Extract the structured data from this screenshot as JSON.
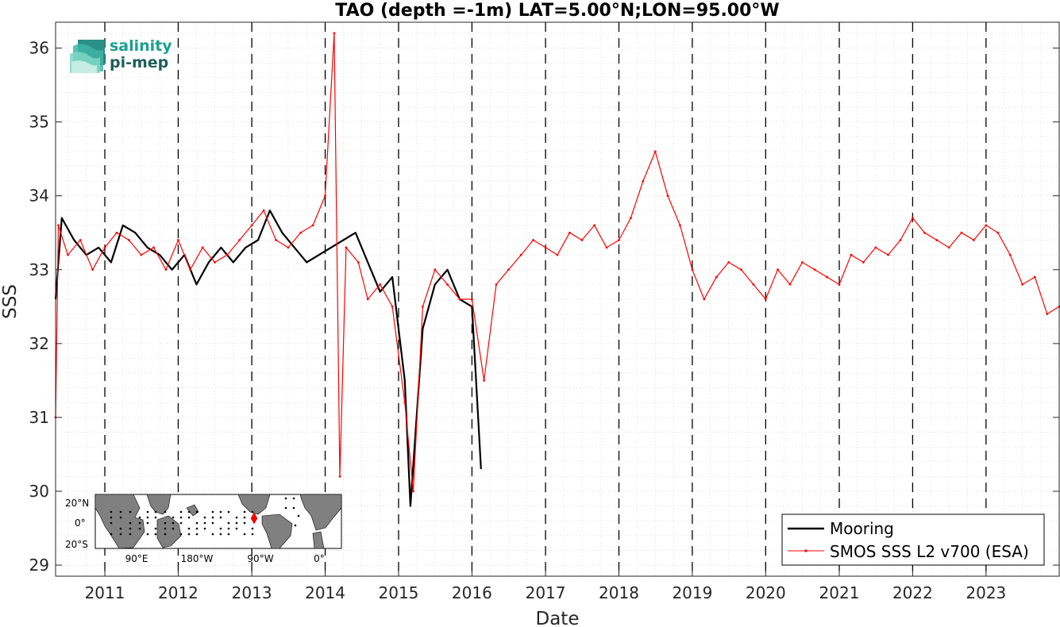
{
  "chart_data": {
    "type": "line",
    "title": "TAO (depth =-1m) LAT=5.00°N;LON=95.00°W",
    "xlabel": "Date",
    "ylabel": "SSS",
    "xlim": [
      "2010-05-01",
      "2023-12-31"
    ],
    "ylim": [
      28.85,
      36.35
    ],
    "x_ticks": [
      "2011",
      "2012",
      "2013",
      "2014",
      "2015",
      "2016",
      "2017",
      "2018",
      "2019",
      "2020",
      "2021",
      "2022",
      "2023"
    ],
    "y_ticks": [
      29,
      30,
      31,
      32,
      33,
      34,
      35,
      36
    ],
    "year_boundaries": [
      "2011-01-01",
      "2012-01-01",
      "2013-01-01",
      "2014-01-01",
      "2015-01-01",
      "2016-01-01",
      "2017-01-01",
      "2018-01-01",
      "2019-01-01",
      "2020-01-01",
      "2021-01-01",
      "2022-01-01",
      "2023-01-01"
    ],
    "grid": true,
    "legend_position": "bottom-right",
    "series": [
      {
        "name": "Mooring",
        "color": "#000000",
        "style": "solid-thick",
        "x": [
          "2010-05-01",
          "2010-06-01",
          "2010-08-01",
          "2010-10-01",
          "2010-12-01",
          "2011-02-01",
          "2011-04-01",
          "2011-06-01",
          "2011-08-01",
          "2011-10-01",
          "2011-12-01",
          "2012-02-01",
          "2012-04-01",
          "2012-06-01",
          "2012-08-01",
          "2012-10-01",
          "2012-12-01",
          "2013-02-01",
          "2013-04-01",
          "2013-06-01",
          "2013-08-01",
          "2013-10-01",
          "2014-06-01",
          "2014-08-01",
          "2014-10-01",
          "2014-12-01",
          "2015-02-01",
          "2015-03-01",
          "2015-05-01",
          "2015-07-01",
          "2015-09-01",
          "2015-11-01",
          "2016-01-01",
          "2016-02-15"
        ],
        "y": [
          32.6,
          33.7,
          33.4,
          33.2,
          33.3,
          33.1,
          33.6,
          33.5,
          33.3,
          33.2,
          33.0,
          33.2,
          32.8,
          33.1,
          33.3,
          33.1,
          33.3,
          33.4,
          33.8,
          33.5,
          33.3,
          33.1,
          33.5,
          33.1,
          32.7,
          32.9,
          31.5,
          29.8,
          32.2,
          32.8,
          33.0,
          32.6,
          32.5,
          30.3
        ]
      },
      {
        "name": "SMOS SSS L2 v700 (ESA)",
        "color": "#ff0000",
        "style": "solid-marker",
        "x": [
          "2010-05-01",
          "2010-05-15",
          "2010-07-01",
          "2010-09-01",
          "2010-11-01",
          "2011-01-01",
          "2011-03-01",
          "2011-05-01",
          "2011-07-01",
          "2011-09-01",
          "2011-11-01",
          "2012-01-01",
          "2012-03-01",
          "2012-05-01",
          "2012-07-01",
          "2012-09-01",
          "2012-11-01",
          "2013-01-01",
          "2013-03-01",
          "2013-05-01",
          "2013-07-01",
          "2013-09-01",
          "2013-11-01",
          "2014-01-01",
          "2014-02-15",
          "2014-03-15",
          "2014-04-15",
          "2014-06-15",
          "2014-08-01",
          "2014-10-01",
          "2014-12-01",
          "2015-02-01",
          "2015-03-15",
          "2015-05-01",
          "2015-07-01",
          "2015-09-01",
          "2015-11-01",
          "2016-01-01",
          "2016-03-01",
          "2016-05-01",
          "2016-07-01",
          "2016-09-01",
          "2016-11-01",
          "2017-01-01",
          "2017-03-01",
          "2017-05-01",
          "2017-07-01",
          "2017-09-01",
          "2017-11-01",
          "2018-01-01",
          "2018-03-01",
          "2018-05-01",
          "2018-07-01",
          "2018-09-01",
          "2018-11-01",
          "2019-01-01",
          "2019-03-01",
          "2019-05-01",
          "2019-07-01",
          "2019-09-01",
          "2019-11-01",
          "2020-01-01",
          "2020-03-01",
          "2020-05-01",
          "2020-07-01",
          "2020-09-01",
          "2020-11-01",
          "2021-01-01",
          "2021-03-01",
          "2021-05-01",
          "2021-07-01",
          "2021-09-01",
          "2021-11-01",
          "2022-01-01",
          "2022-03-01",
          "2022-05-01",
          "2022-07-01",
          "2022-09-01",
          "2022-11-01",
          "2023-01-01",
          "2023-03-01",
          "2023-05-01",
          "2023-07-01",
          "2023-09-01",
          "2023-11-01",
          "2023-12-31"
        ],
        "y": [
          31.0,
          33.6,
          33.2,
          33.4,
          33.0,
          33.3,
          33.5,
          33.4,
          33.2,
          33.3,
          33.0,
          33.4,
          33.0,
          33.3,
          33.1,
          33.2,
          33.4,
          33.6,
          33.8,
          33.4,
          33.3,
          33.5,
          33.6,
          34.0,
          36.2,
          30.2,
          33.3,
          33.1,
          32.6,
          32.8,
          32.5,
          31.2,
          30.0,
          32.5,
          33.0,
          32.8,
          32.6,
          32.6,
          31.5,
          32.8,
          33.0,
          33.2,
          33.4,
          33.3,
          33.2,
          33.5,
          33.4,
          33.6,
          33.3,
          33.4,
          33.7,
          34.2,
          34.6,
          34.0,
          33.6,
          33.0,
          32.6,
          32.9,
          33.1,
          33.0,
          32.8,
          32.6,
          33.0,
          32.8,
          33.1,
          33.0,
          32.9,
          32.8,
          33.2,
          33.1,
          33.3,
          33.2,
          33.4,
          33.7,
          33.5,
          33.4,
          33.3,
          33.5,
          33.4,
          33.6,
          33.5,
          33.2,
          32.8,
          32.9,
          32.4,
          32.5
        ]
      }
    ]
  },
  "logo": {
    "line1": "salinity",
    "line2": "pi-mep"
  },
  "inset_map": {
    "lat_labels": [
      "20°N",
      "0°",
      "20°S"
    ],
    "lon_labels": [
      "90°E",
      "180°W",
      "90°W",
      "0°"
    ]
  },
  "colors": {
    "mooring": "#000000",
    "satellite": "#ff0000",
    "grid": "#cccccc",
    "land": "#808080",
    "logo": "#1aa090"
  }
}
